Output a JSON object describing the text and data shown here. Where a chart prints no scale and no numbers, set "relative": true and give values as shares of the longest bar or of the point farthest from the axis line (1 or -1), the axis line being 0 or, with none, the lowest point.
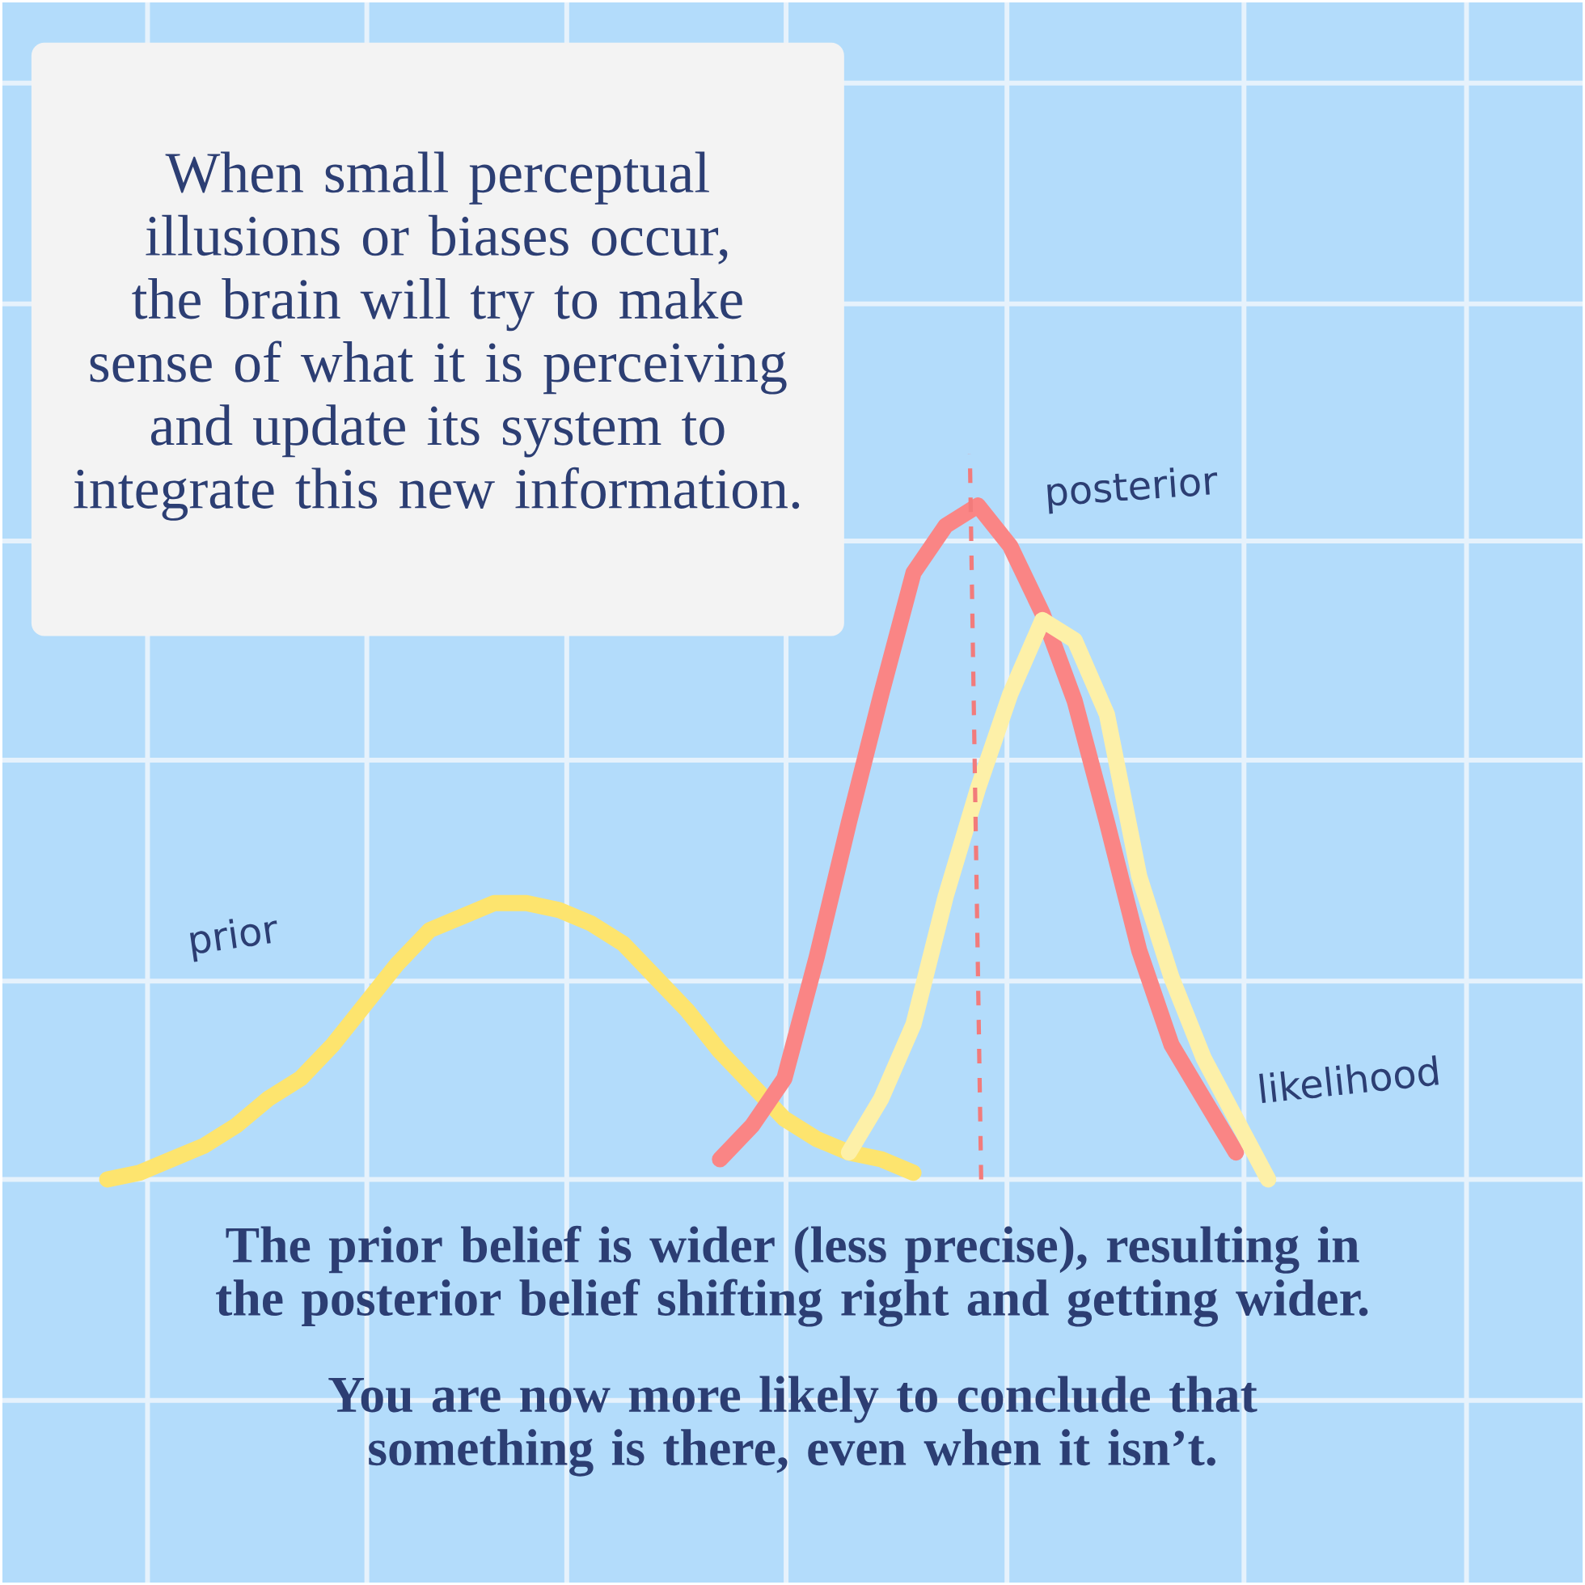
{
  "chart_data": {
    "type": "line",
    "relative": true,
    "grid": true,
    "line_style": "solid",
    "marker": "none",
    "categories": [
      null,
      null,
      null,
      null,
      null,
      null,
      null,
      null,
      null,
      null,
      null,
      null,
      null,
      null,
      null,
      null,
      null,
      null,
      null,
      null,
      null,
      null,
      null,
      null,
      null,
      null,
      null,
      null,
      null,
      null,
      null,
      null,
      null,
      null,
      null,
      null,
      null
    ],
    "series": [
      {
        "name": "prior",
        "color": "#fde46e",
        "values": [
          0.0,
          0.01,
          0.03,
          0.05,
          0.08,
          0.12,
          0.15,
          0.2,
          0.26,
          0.32,
          0.37,
          0.39,
          0.41,
          0.41,
          0.4,
          0.38,
          0.35,
          0.3,
          0.25,
          0.19,
          0.14,
          0.09,
          0.06,
          0.04,
          0.03,
          0.01,
          null,
          null,
          null,
          null,
          null,
          null,
          null,
          null,
          null,
          null,
          null
        ]
      },
      {
        "name": "posterior",
        "color": "#fa8585",
        "values": [
          null,
          null,
          null,
          null,
          null,
          null,
          null,
          null,
          null,
          null,
          null,
          null,
          null,
          null,
          null,
          null,
          null,
          null,
          null,
          0.03,
          0.08,
          0.15,
          0.33,
          0.53,
          0.72,
          0.9,
          0.97,
          1,
          0.94,
          0.84,
          0.71,
          0.53,
          0.34,
          0.2,
          0.12,
          0.04,
          null
        ]
      },
      {
        "name": "likelihood",
        "color": "#fdf0a8",
        "values": [
          null,
          null,
          null,
          null,
          null,
          null,
          null,
          null,
          null,
          null,
          null,
          null,
          null,
          null,
          null,
          null,
          null,
          null,
          null,
          null,
          null,
          null,
          null,
          0.04,
          0.12,
          0.23,
          0.42,
          0.58,
          0.72,
          0.83,
          0.8,
          0.69,
          0.45,
          0.3,
          0.18,
          0.09,
          0.0
        ]
      }
    ],
    "annotations": [
      "When small perceptual illusions or biases occur, the brain will try to make sense of what it is perceiving and update its system to integrate this new information.",
      "**The prior belief is wider (less precise), resulting in the posterior belief shifting right and getting wider.**",
      "**You are now more likely to conclude that something is there, even when it isn’t.**"
    ]
  }
}
